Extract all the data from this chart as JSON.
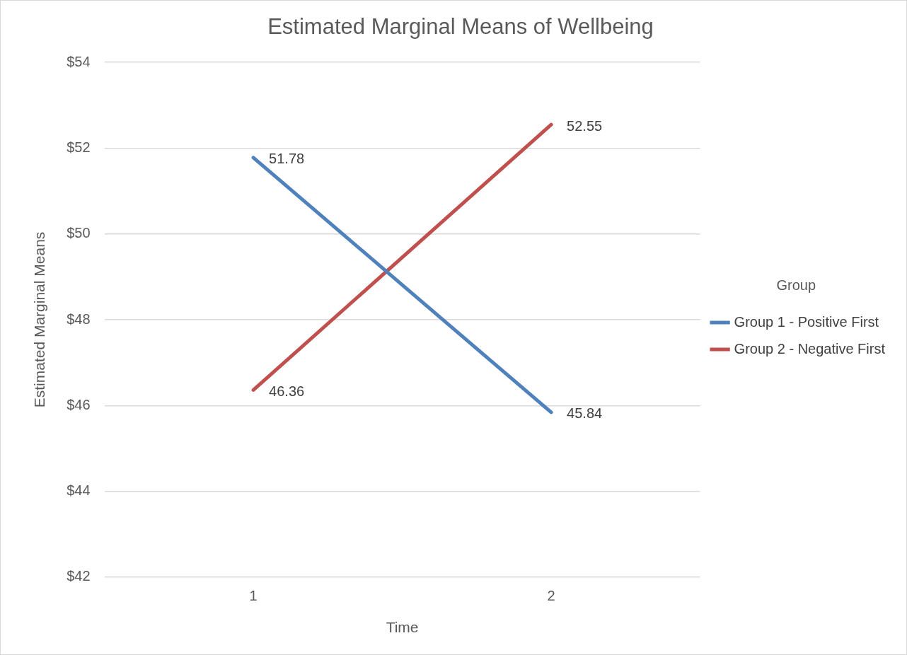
{
  "chart_data": {
    "type": "line",
    "title": "Estimated Marginal Means of Wellbeing",
    "xlabel": "Time",
    "ylabel": "Estimated Marginal Means",
    "legend_title": "Group",
    "categories": [
      "1",
      "2"
    ],
    "series": [
      {
        "name": "Group 1 - Positive First",
        "color": "#4f81bd",
        "values": [
          51.78,
          45.84
        ]
      },
      {
        "name": "Group 2 - Negative First",
        "color": "#c0504d",
        "values": [
          46.36,
          52.55
        ]
      }
    ],
    "ylim": [
      42,
      54
    ],
    "yticks": [
      {
        "value": 42,
        "label": "$42"
      },
      {
        "value": 44,
        "label": "$44"
      },
      {
        "value": 46,
        "label": "$46"
      },
      {
        "value": 48,
        "label": "$48"
      },
      {
        "value": 50,
        "label": "$50"
      },
      {
        "value": 52,
        "label": "$52"
      },
      {
        "value": 54,
        "label": "$54"
      }
    ],
    "grid": "y",
    "legend": "right",
    "marker": "none",
    "line_style": "solid",
    "data_labels": true
  }
}
